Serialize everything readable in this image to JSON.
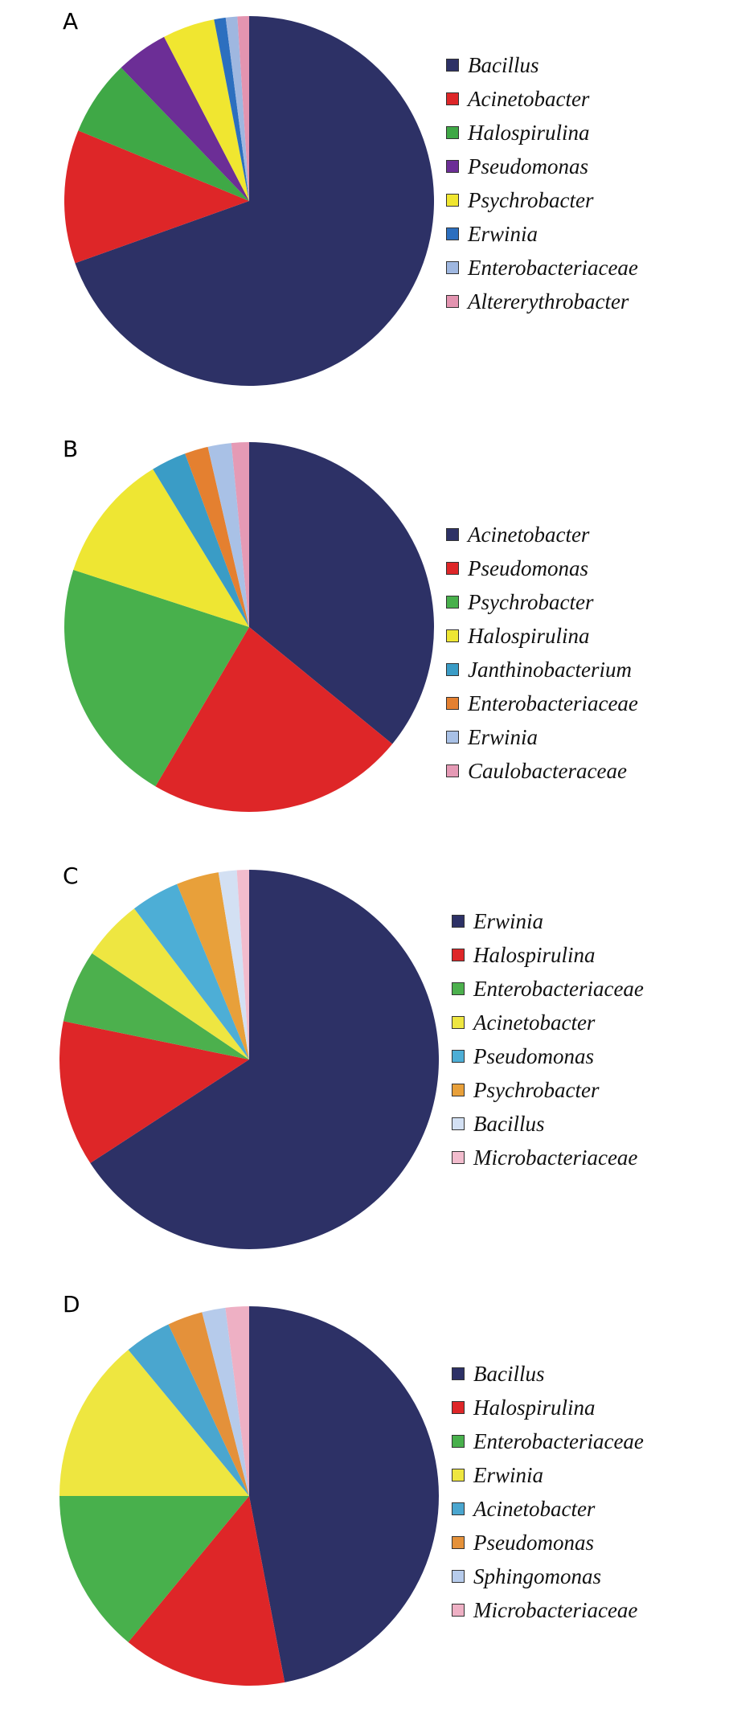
{
  "chart_data": [
    {
      "type": "pie",
      "panel_label": "A",
      "legend_position": "right",
      "labels": [
        "Bacillus",
        "Acinetobacter",
        "Halospirulina",
        "Pseudomonas",
        "Psychrobacter",
        "Erwinia",
        "Enterobacteriaceae",
        "Altererythrobacter"
      ],
      "values": [
        68.5,
        11.5,
        6.5,
        4.5,
        4.5,
        1.0,
        1.0,
        1.0
      ],
      "colors": [
        "#2d3166",
        "#de2628",
        "#3fa846",
        "#6c2e96",
        "#f0e630",
        "#2c6fbf",
        "#9fb7e0",
        "#e394b0"
      ]
    },
    {
      "type": "pie",
      "panel_label": "B",
      "legend_position": "right",
      "labels": [
        "Acinetobacter",
        "Pseudomonas",
        "Psychrobacter",
        "Halospirulina",
        "Janthinobacterium",
        "Enterobacteriaceae",
        "Erwinia",
        "Caulobacteraceae"
      ],
      "values": [
        35,
        22,
        21,
        11,
        3,
        2,
        2,
        1.5
      ],
      "colors": [
        "#2d3166",
        "#de2628",
        "#48b04c",
        "#eee633",
        "#3a9cc6",
        "#e48030",
        "#a9c1e6",
        "#e59ab5"
      ]
    },
    {
      "type": "pie",
      "panel_label": "C",
      "legend_position": "right",
      "labels": [
        "Erwinia",
        "Halospirulina",
        "Enterobacteriaceae",
        "Acinetobacter",
        "Pseudomonas",
        "Psychrobacter",
        "Bacillus",
        "Microbacteriaceae"
      ],
      "values": [
        63.5,
        12,
        6,
        5,
        4,
        3.5,
        1.5,
        1
      ],
      "colors": [
        "#2d3166",
        "#de2628",
        "#4cb04d",
        "#eee641",
        "#4daed6",
        "#e8a03a",
        "#d3e0f3",
        "#f2bccd"
      ]
    },
    {
      "type": "pie",
      "panel_label": "D",
      "legend_position": "right",
      "labels": [
        "Bacillus",
        "Halospirulina",
        "Enterobacteriaceae",
        "Erwinia",
        "Acinetobacter",
        "Pseudomonas",
        "Sphingomonas",
        "Microbacteriaceae"
      ],
      "values": [
        47,
        14,
        14,
        14,
        4,
        3,
        2,
        2
      ],
      "colors": [
        "#2d3166",
        "#de2628",
        "#48b04c",
        "#eee640",
        "#4aa6cf",
        "#e4913a",
        "#b6cbeb",
        "#eeb0c4"
      ]
    }
  ]
}
